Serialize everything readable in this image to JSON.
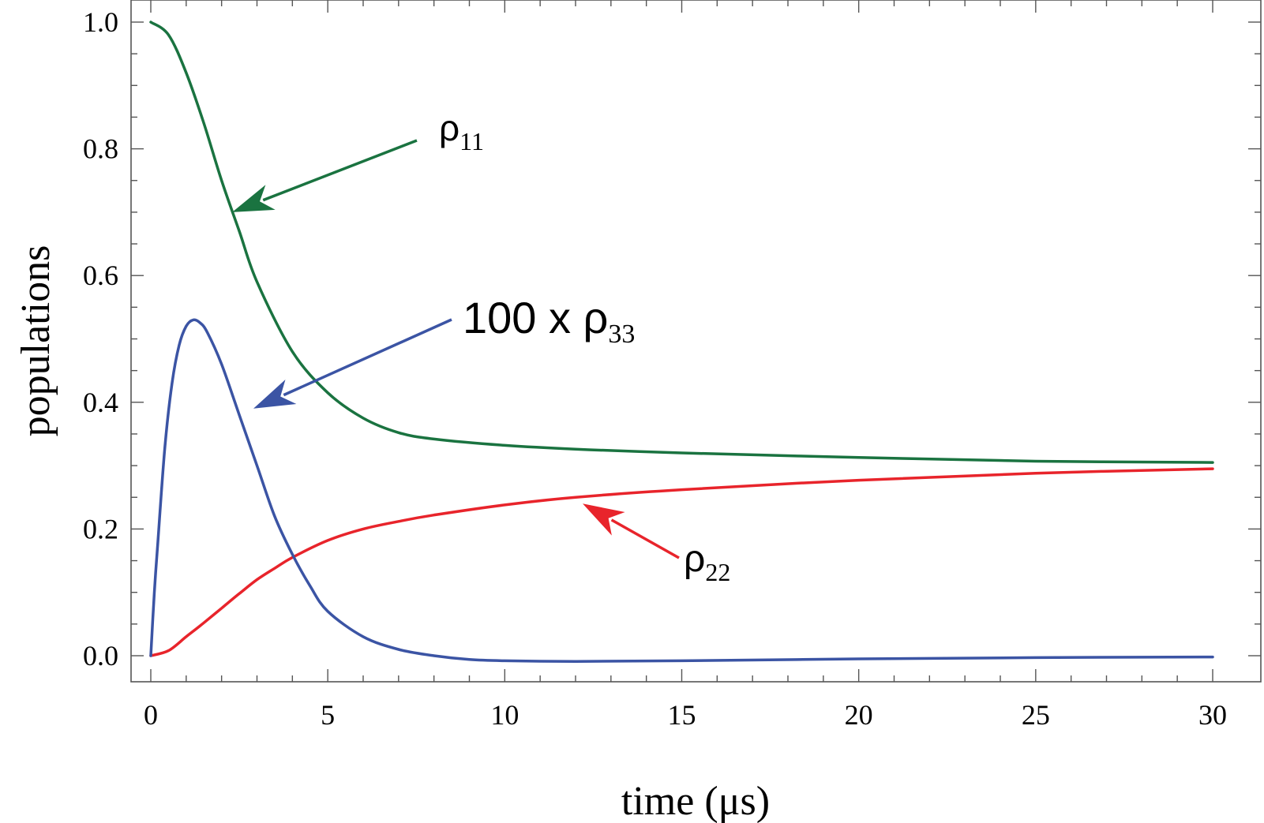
{
  "chart_data": {
    "type": "line",
    "xlabel": "time (μs)",
    "ylabel": "populations",
    "xlim": [
      0,
      30
    ],
    "ylim": [
      0,
      1
    ],
    "xticks": [
      "0",
      "5",
      "10",
      "15",
      "20",
      "25",
      "30"
    ],
    "yticks": [
      "0.0",
      "0.2",
      "0.4",
      "0.6",
      "0.8",
      "1.0"
    ],
    "grid": false,
    "series": [
      {
        "name": "ρ11",
        "color": "#1a7340",
        "x": [
          0,
          0.5,
          1,
          1.5,
          2,
          2.5,
          3,
          4,
          5,
          6,
          7,
          8,
          10,
          12,
          15,
          20,
          25,
          30
        ],
        "y": [
          1.0,
          0.98,
          0.92,
          0.84,
          0.75,
          0.67,
          0.59,
          0.48,
          0.415,
          0.375,
          0.352,
          0.342,
          0.332,
          0.326,
          0.32,
          0.313,
          0.307,
          0.305
        ]
      },
      {
        "name": "ρ22",
        "color": "#e8242b",
        "x": [
          0,
          0.5,
          1,
          1.5,
          2,
          2.5,
          3,
          3.5,
          4,
          5,
          6,
          7,
          8,
          10,
          12,
          15,
          20,
          25,
          30
        ],
        "y": [
          0.0,
          0.008,
          0.03,
          0.052,
          0.075,
          0.098,
          0.12,
          0.138,
          0.155,
          0.182,
          0.2,
          0.212,
          0.222,
          0.238,
          0.25,
          0.262,
          0.277,
          0.288,
          0.295
        ]
      },
      {
        "name": "100 x ρ33",
        "color": "#3b54a4",
        "x": [
          0,
          0.1,
          0.2,
          0.4,
          0.6,
          0.8,
          1,
          1.2,
          1.4,
          1.6,
          2,
          2.5,
          3,
          3.5,
          4,
          4.5,
          5,
          6,
          7,
          8,
          9,
          10,
          12,
          15,
          20,
          25,
          30
        ],
        "y": [
          0.0,
          0.1,
          0.18,
          0.33,
          0.43,
          0.49,
          0.52,
          0.53,
          0.525,
          0.51,
          0.46,
          0.38,
          0.3,
          0.22,
          0.16,
          0.11,
          0.07,
          0.03,
          0.01,
          0.0,
          -0.006,
          -0.008,
          -0.009,
          -0.008,
          -0.005,
          -0.003,
          -0.002
        ]
      }
    ],
    "annotations": [
      {
        "series": 0,
        "text": "ρ",
        "sub": "11",
        "x_data": 2.3,
        "y_data": 0.7
      },
      {
        "series": 2,
        "text": "100 x ρ",
        "sub": "33",
        "x_data": 2.9,
        "y_data": 0.39
      },
      {
        "series": 1,
        "text": "ρ",
        "sub": "22",
        "x_data": 12.2,
        "y_data": 0.24
      }
    ]
  }
}
